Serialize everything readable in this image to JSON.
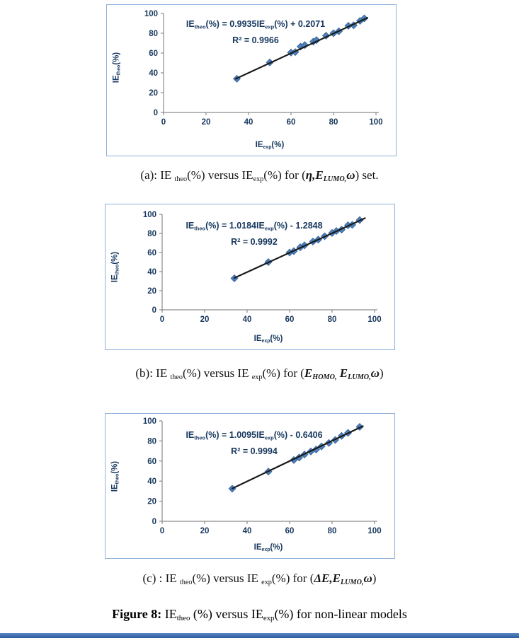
{
  "colors": {
    "marker_fill": "#4F81BD",
    "marker_edge": "#3A679C",
    "trendline": "#1A1A1A",
    "axis": "#8C8C8C",
    "tick_text": "#17375E",
    "equation_text": "#17375E",
    "chart_border": "#8EB0DB",
    "bottom_bar": "#3B6CB0"
  },
  "chart_data": [
    {
      "type": "scatter",
      "equation": {
        "line1": [
          {
            "t": "IE",
            "s": "n"
          },
          {
            "t": "theo",
            "s": "sub"
          },
          {
            "t": "(%) = 0.9935IE",
            "s": "n"
          },
          {
            "t": "exp",
            "s": "sub"
          },
          {
            "t": "(%) + 0.2071",
            "s": "n"
          }
        ],
        "line2": [
          {
            "t": "R",
            "s": "n"
          },
          {
            "t": "2",
            "s": "sup"
          },
          {
            "t": " = 0.9966",
            "s": "n"
          }
        ]
      },
      "x_label": [
        {
          "t": "IE",
          "s": "n"
        },
        {
          "t": "exp",
          "s": "sub"
        },
        {
          "t": "(%)",
          "s": "n"
        }
      ],
      "y_label": [
        {
          "t": "IE",
          "s": "n"
        },
        {
          "t": "theo",
          "s": "sub"
        },
        {
          "t": "(%)",
          "s": "n"
        }
      ],
      "xlim": [
        0,
        100
      ],
      "ylim": [
        0,
        100
      ],
      "x_ticks": [
        0,
        20,
        40,
        60,
        80,
        100
      ],
      "y_ticks": [
        0,
        20,
        40,
        60,
        80,
        100
      ],
      "points": [
        [
          34.5,
          34
        ],
        [
          50,
          50.5
        ],
        [
          60,
          60.5
        ],
        [
          62,
          61
        ],
        [
          64.5,
          66.5
        ],
        [
          66.5,
          68
        ],
        [
          70.5,
          71.5
        ],
        [
          72,
          73
        ],
        [
          76.5,
          77.5
        ],
        [
          80,
          80
        ],
        [
          82.5,
          82
        ],
        [
          87,
          87.5
        ],
        [
          89.5,
          88
        ],
        [
          92.5,
          92.5
        ],
        [
          94.5,
          95
        ]
      ],
      "trendline": {
        "slope": 0.9935,
        "intercept": 0.2071,
        "x_start": 34,
        "x_end": 96,
        "r2": 0.9966
      },
      "caption": [
        {
          "t": "(a): IE ",
          "s": "n"
        },
        {
          "t": "theo",
          "s": "sub"
        },
        {
          "t": "(%) versus IE",
          "s": "n"
        },
        {
          "t": "exp",
          "s": "sub"
        },
        {
          "t": "(%)  for (",
          "s": "n"
        },
        {
          "t": "η",
          "s": "bi"
        },
        {
          "t": ",",
          "s": "bi"
        },
        {
          "t": "E",
          "s": "bi"
        },
        {
          "t": "LUMO,",
          "s": "bisub"
        },
        {
          "t": "ω",
          "s": "bi"
        },
        {
          "t": ") set.",
          "s": "n"
        }
      ]
    },
    {
      "type": "scatter",
      "equation": {
        "line1": [
          {
            "t": "IE",
            "s": "n"
          },
          {
            "t": "theo",
            "s": "sub"
          },
          {
            "t": "(%) = 1.0184IE",
            "s": "n"
          },
          {
            "t": "exp",
            "s": "sub"
          },
          {
            "t": "(%) - 1.2848",
            "s": "n"
          }
        ],
        "line2": [
          {
            "t": "R",
            "s": "n"
          },
          {
            "t": "2",
            "s": "sup"
          },
          {
            "t": " = 0.9992",
            "s": "n"
          }
        ]
      },
      "x_label": [
        {
          "t": "IE",
          "s": "n"
        },
        {
          "t": "exp",
          "s": "sub"
        },
        {
          "t": "(%)",
          "s": "n"
        }
      ],
      "y_label": [
        {
          "t": "IE",
          "s": "n"
        },
        {
          "t": "theo",
          "s": "sub"
        },
        {
          "t": "(%)",
          "s": "n"
        }
      ],
      "xlim": [
        0,
        100
      ],
      "ylim": [
        0,
        100
      ],
      "x_ticks": [
        0,
        20,
        40,
        60,
        80,
        100
      ],
      "y_ticks": [
        0,
        20,
        40,
        60,
        80,
        100
      ],
      "points": [
        [
          34,
          33
        ],
        [
          50,
          50
        ],
        [
          60,
          60
        ],
        [
          62,
          61.5
        ],
        [
          65,
          65.5
        ],
        [
          67,
          67.5
        ],
        [
          71,
          71.5
        ],
        [
          73.5,
          73.5
        ],
        [
          76.5,
          77
        ],
        [
          80,
          80.5
        ],
        [
          82,
          82.5
        ],
        [
          84.5,
          84
        ],
        [
          87.5,
          88.5
        ],
        [
          89.5,
          89
        ],
        [
          93,
          94
        ]
      ],
      "trendline": {
        "slope": 1.0184,
        "intercept": -1.2848,
        "x_start": 34,
        "x_end": 95.5,
        "r2": 0.9992
      },
      "caption": [
        {
          "t": "(b): IE ",
          "s": "n"
        },
        {
          "t": "theo",
          "s": "sub"
        },
        {
          "t": "(%) versus IE ",
          "s": "n"
        },
        {
          "t": "exp",
          "s": "sub"
        },
        {
          "t": "(%)  for (",
          "s": "n"
        },
        {
          "t": "E",
          "s": "bi"
        },
        {
          "t": "HOMO,",
          "s": "bisub"
        },
        {
          "t": " E",
          "s": "bi"
        },
        {
          "t": "LUMO,",
          "s": "bisub"
        },
        {
          "t": "ω",
          "s": "bi"
        },
        {
          "t": ")",
          "s": "n"
        }
      ]
    },
    {
      "type": "scatter",
      "equation": {
        "line1": [
          {
            "t": "IE",
            "s": "n"
          },
          {
            "t": "theo",
            "s": "sub"
          },
          {
            "t": "(%) = 1.0095IE",
            "s": "n"
          },
          {
            "t": "exp",
            "s": "sub"
          },
          {
            "t": "(%) - 0.6406",
            "s": "n"
          }
        ],
        "line2": [
          {
            "t": "R",
            "s": "n"
          },
          {
            "t": "2",
            "s": "sup"
          },
          {
            "t": " = 0.9994",
            "s": "n"
          }
        ]
      },
      "x_label": [
        {
          "t": "IE",
          "s": "n"
        },
        {
          "t": "exp",
          "s": "sub"
        },
        {
          "t": "(%)",
          "s": "n"
        }
      ],
      "y_label": [
        {
          "t": "IE",
          "s": "n"
        },
        {
          "t": "theo",
          "s": "sub"
        },
        {
          "t": "(%)",
          "s": "n"
        }
      ],
      "xlim": [
        0,
        100
      ],
      "ylim": [
        0,
        100
      ],
      "x_ticks": [
        0,
        20,
        40,
        60,
        80,
        100
      ],
      "y_ticks": [
        0,
        20,
        40,
        60,
        80,
        100
      ],
      "points": [
        [
          33,
          32.5
        ],
        [
          50,
          49.5
        ],
        [
          62,
          61
        ],
        [
          64.5,
          63.5
        ],
        [
          67,
          66.5
        ],
        [
          70,
          69.5
        ],
        [
          72.5,
          71.5
        ],
        [
          75,
          74.5
        ],
        [
          78.5,
          78
        ],
        [
          81.5,
          81
        ],
        [
          84.5,
          85
        ],
        [
          87.5,
          88
        ],
        [
          93,
          94
        ]
      ],
      "trendline": {
        "slope": 1.0095,
        "intercept": -0.6406,
        "x_start": 33,
        "x_end": 94.5,
        "r2": 0.9994
      },
      "caption": [
        {
          "t": "(c) : IE ",
          "s": "n"
        },
        {
          "t": "theo",
          "s": "sub"
        },
        {
          "t": "(%) versus IE ",
          "s": "n"
        },
        {
          "t": "exp",
          "s": "sub"
        },
        {
          "t": "(%)  for (",
          "s": "n"
        },
        {
          "t": "ΔE",
          "s": "bi"
        },
        {
          "t": ",",
          "s": "bi"
        },
        {
          "t": "E",
          "s": "bi"
        },
        {
          "t": "LUMO,",
          "s": "bisub"
        },
        {
          "t": "ω",
          "s": "bi"
        },
        {
          "t": ")",
          "s": "n"
        }
      ]
    }
  ],
  "figure_caption": [
    {
      "t": "Figure 8: ",
      "s": "b"
    },
    {
      "t": "IE",
      "s": "n"
    },
    {
      "t": "theo",
      "s": "sub"
    },
    {
      "t": " (%) versus IE",
      "s": "n"
    },
    {
      "t": "exp",
      "s": "sub"
    },
    {
      "t": "(%)  for  non-linear models",
      "s": "n"
    }
  ]
}
